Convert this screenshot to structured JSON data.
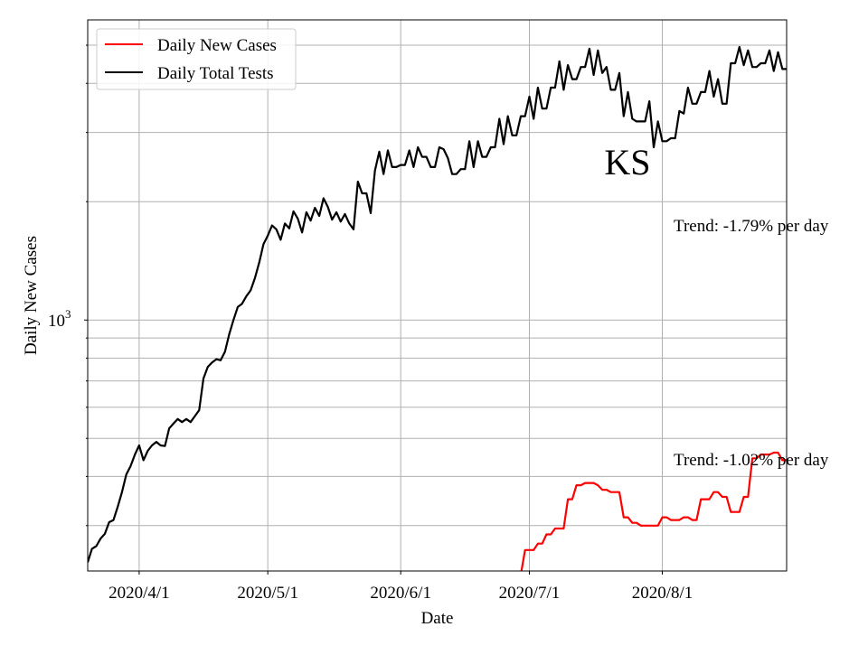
{
  "chart_data": {
    "type": "line",
    "title": "KS",
    "xlabel": "Date",
    "ylabel": "Daily New Cases",
    "yscale": "log",
    "ylim": [
      230,
      5800
    ],
    "xlim": [
      "2020-03-20",
      "2020-08-30"
    ],
    "grid": true,
    "legend_position": "top-left",
    "x_ticks": [
      {
        "date": "2020-04-01",
        "label": "2020/4/1"
      },
      {
        "date": "2020-05-01",
        "label": "2020/5/1"
      },
      {
        "date": "2020-06-01",
        "label": "2020/6/1"
      },
      {
        "date": "2020-07-01",
        "label": "2020/7/1"
      },
      {
        "date": "2020-08-01",
        "label": "2020/8/1"
      }
    ],
    "y_major_tick": {
      "value": 1000,
      "base": "10",
      "exponent": "3"
    },
    "annotations": [
      {
        "text": "Trend: -1.79% per day",
        "series": "Daily Total Tests"
      },
      {
        "text": "Trend: -1.02% per day",
        "series": "Daily New Cases"
      }
    ],
    "series": [
      {
        "name": "Daily New Cases",
        "color": "#ff0000",
        "start_date": "2020-06-29",
        "values": [
          225,
          260,
          260,
          260,
          270,
          270,
          285,
          285,
          295,
          295,
          295,
          350,
          350,
          380,
          380,
          385,
          385,
          385,
          380,
          370,
          370,
          365,
          365,
          365,
          315,
          315,
          305,
          305,
          300,
          300,
          300,
          300,
          300,
          315,
          315,
          310,
          310,
          310,
          315,
          315,
          310,
          310,
          350,
          350,
          350,
          365,
          365,
          355,
          355,
          325,
          325,
          325,
          355,
          355,
          445,
          445,
          455,
          455,
          455,
          460,
          460,
          440,
          440,
          450,
          450,
          450,
          460,
          460,
          375,
          445,
          350,
          320
        ]
      },
      {
        "name": "Daily Total Tests",
        "color": "#000000",
        "start_date": "2020-03-20",
        "values": [
          242,
          262,
          266,
          278,
          286,
          306,
          310,
          335,
          365,
          405,
          425,
          455,
          480,
          440,
          465,
          480,
          490,
          480,
          478,
          530,
          545,
          560,
          550,
          560,
          550,
          570,
          590,
          710,
          760,
          780,
          795,
          790,
          830,
          920,
          1000,
          1080,
          1100,
          1150,
          1190,
          1280,
          1400,
          1560,
          1640,
          1740,
          1700,
          1600,
          1760,
          1710,
          1890,
          1810,
          1670,
          1880,
          1790,
          1930,
          1840,
          2040,
          1940,
          1800,
          1880,
          1780,
          1860,
          1760,
          1700,
          2250,
          2100,
          2100,
          1870,
          2400,
          2680,
          2350,
          2700,
          2450,
          2450,
          2480,
          2480,
          2700,
          2450,
          2750,
          2600,
          2600,
          2450,
          2450,
          2750,
          2720,
          2580,
          2350,
          2350,
          2420,
          2420,
          2850,
          2450,
          2850,
          2600,
          2600,
          2750,
          2750,
          3250,
          2800,
          3300,
          2950,
          2950,
          3300,
          3300,
          3700,
          3250,
          3900,
          3450,
          3450,
          3900,
          3900,
          4550,
          3850,
          4450,
          4100,
          4100,
          4400,
          4400,
          4900,
          4200,
          4850,
          4250,
          4400,
          3850,
          3850,
          4250,
          3300,
          3800,
          3250,
          3200,
          3200,
          3200,
          3600,
          2750,
          3200,
          2850,
          2850,
          2900,
          2900,
          3400,
          3350,
          3900,
          3550,
          3550,
          3800,
          3800,
          4300,
          3700,
          4100,
          3550,
          3550,
          4500,
          4500,
          4950,
          4450,
          4850,
          4400,
          4400,
          4500,
          4500,
          4850,
          4300,
          4800,
          4350,
          4350,
          4450,
          4600,
          3600,
          3750,
          3300,
          3600,
          3250,
          3650,
          3150,
          3700,
          3800,
          3300
        ]
      }
    ]
  }
}
